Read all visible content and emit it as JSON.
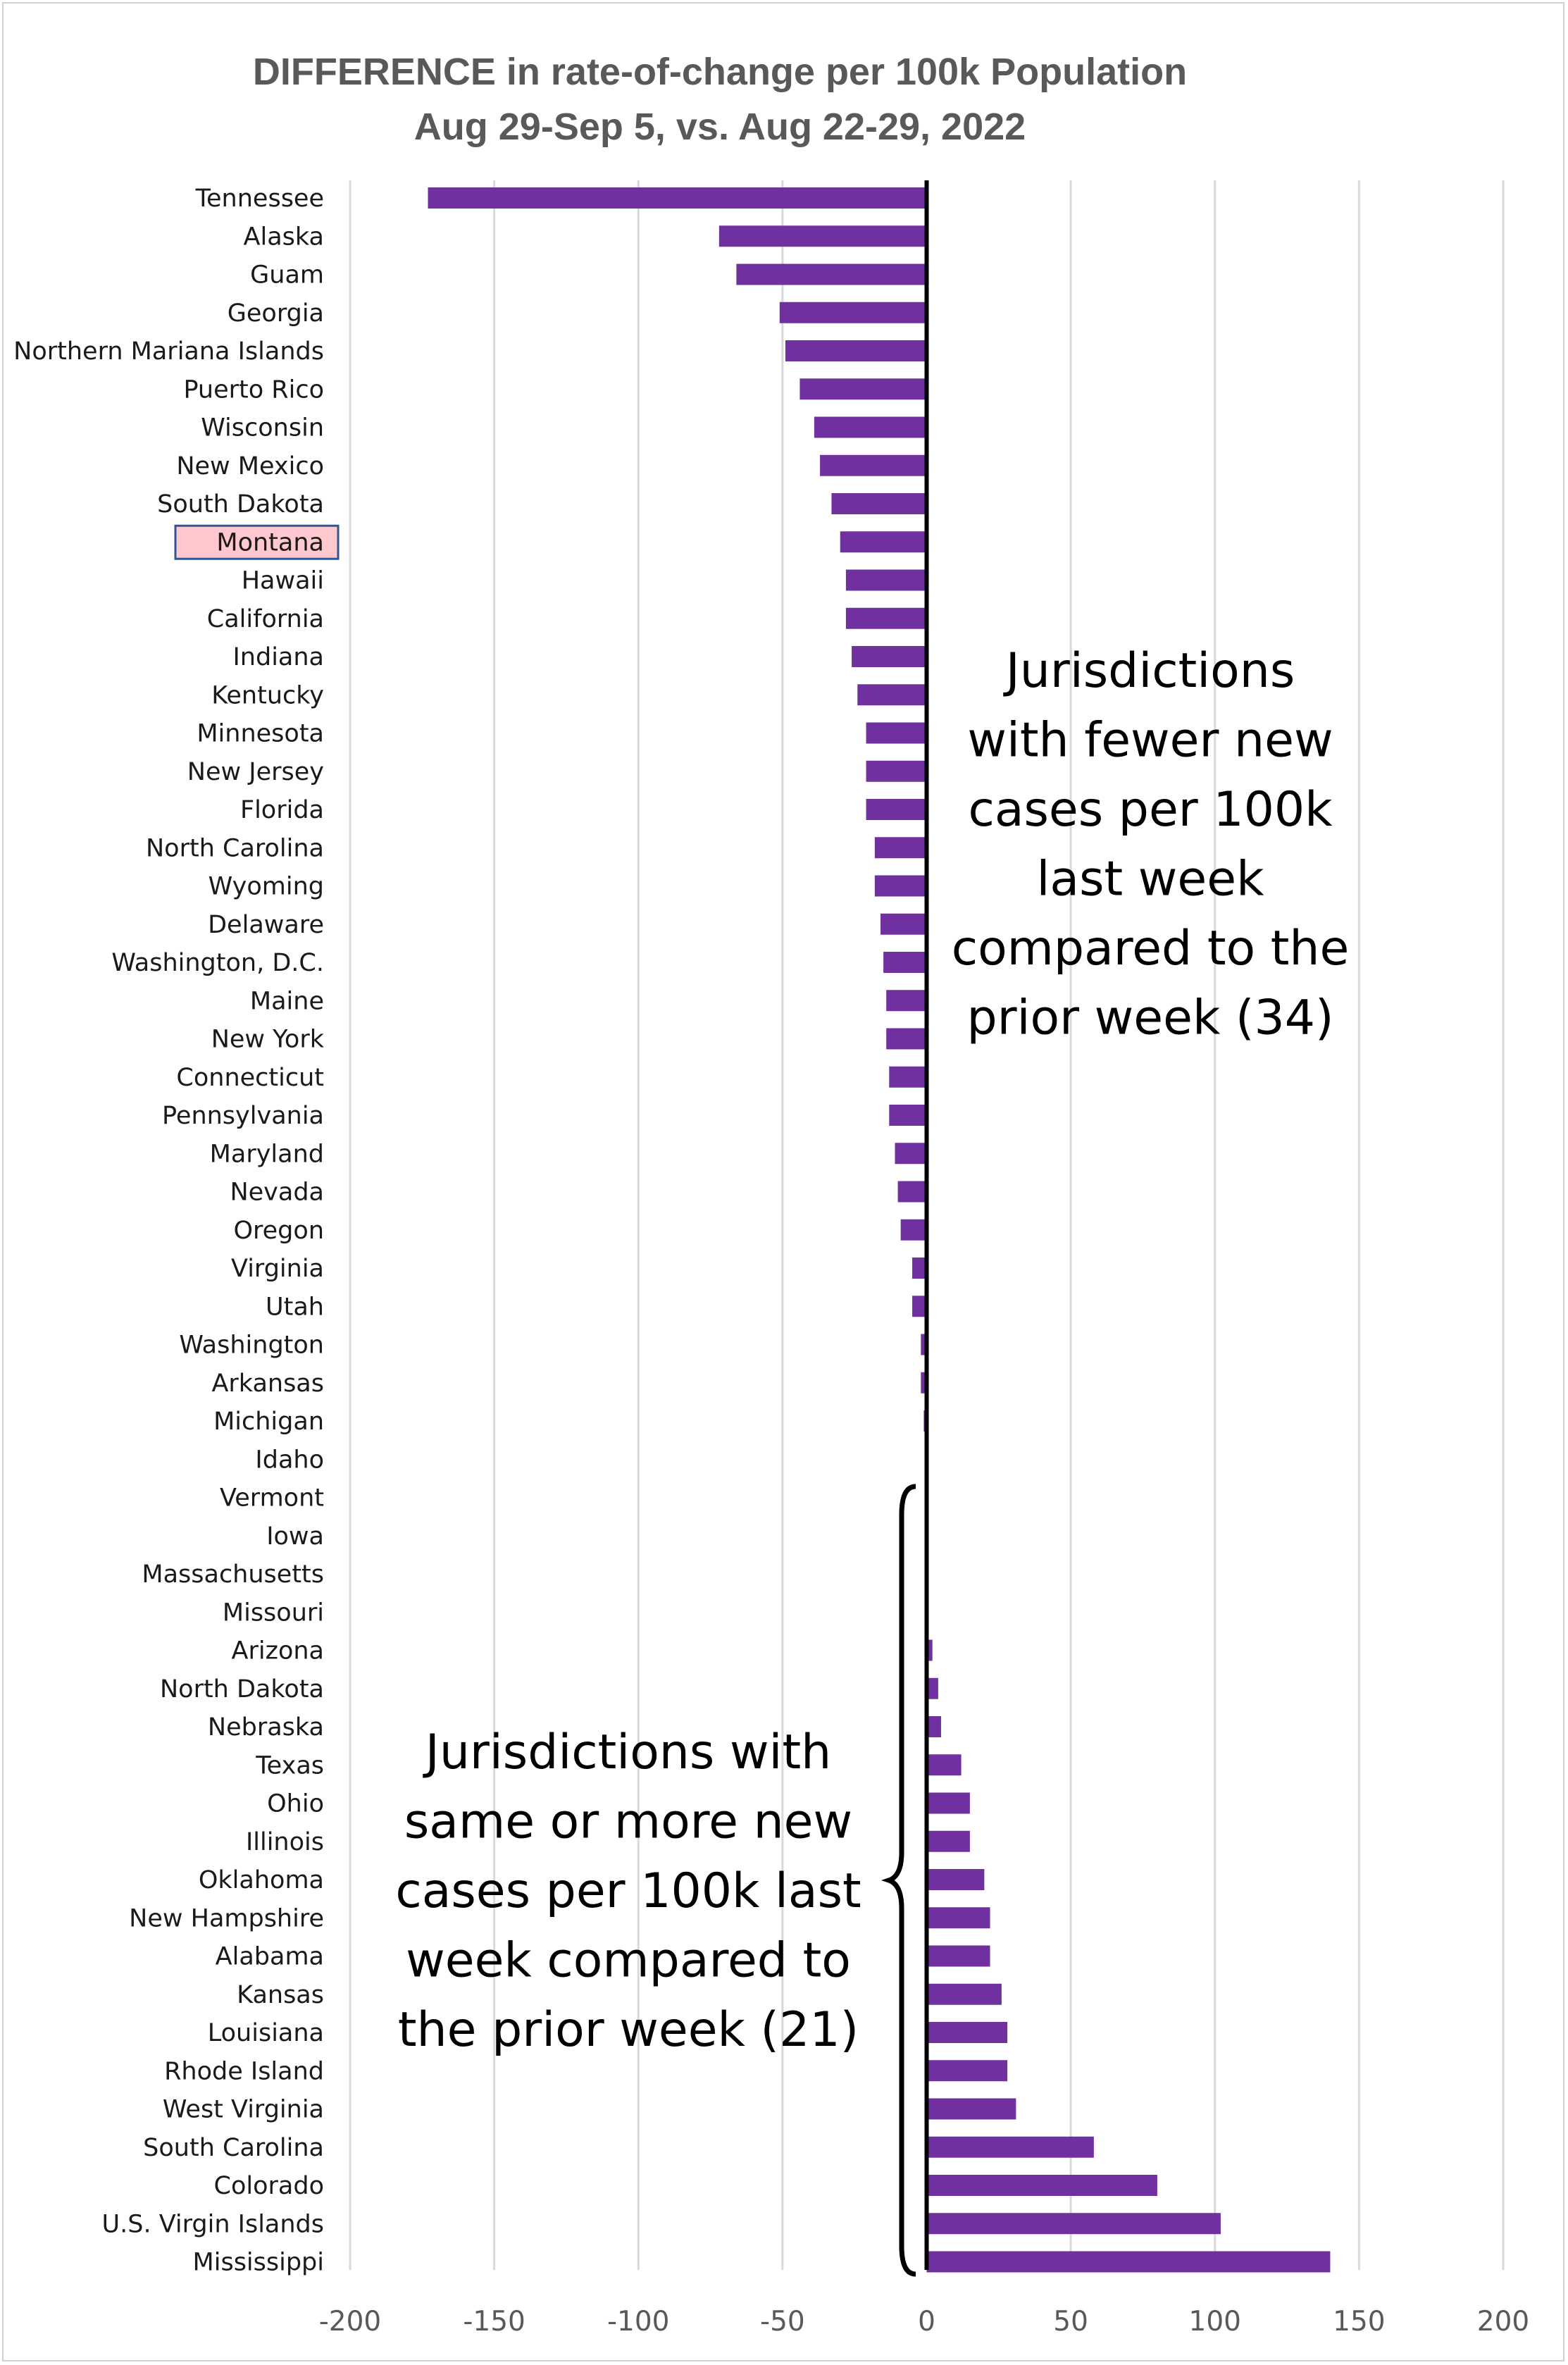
{
  "chart_data": {
    "type": "bar",
    "orientation": "horizontal",
    "title": "DIFFERENCE in rate-of-change per 100k Population",
    "subtitle": "Aug 29-Sep 5, vs. Aug 22-29, 2022",
    "xlabel": "",
    "ylabel": "",
    "xlim": [
      -200,
      200
    ],
    "xticks": [
      -200,
      -150,
      -100,
      -50,
      0,
      50,
      100,
      150,
      200
    ],
    "grid": true,
    "legend": "none",
    "bar_color": "#7030a0",
    "highlight_color": "#ffc7ce",
    "highlight_border": "#2f5597",
    "highlighted_category": "Montana",
    "categories": [
      "Tennessee",
      "Alaska",
      "Guam",
      "Georgia",
      "Northern Mariana Islands",
      "Puerto Rico",
      "Wisconsin",
      "New Mexico",
      "South Dakota",
      "Montana",
      "Hawaii",
      "California",
      "Indiana",
      "Kentucky",
      "Minnesota",
      "New Jersey",
      "Florida",
      "North Carolina",
      "Wyoming",
      "Delaware",
      "Washington, D.C.",
      "Maine",
      "New York",
      "Connecticut",
      "Pennsylvania",
      "Maryland",
      "Nevada",
      "Oregon",
      "Virginia",
      "Utah",
      "Washington",
      "Arkansas",
      "Michigan",
      "Idaho",
      "Vermont",
      "Iowa",
      "Massachusetts",
      "Missouri",
      "Arizona",
      "North Dakota",
      "Nebraska",
      "Texas",
      "Ohio",
      "Illinois",
      "Oklahoma",
      "New Hampshire",
      "Alabama",
      "Kansas",
      "Louisiana",
      "Rhode Island",
      "West Virginia",
      "South Carolina",
      "Colorado",
      "U.S. Virgin Islands",
      "Mississippi"
    ],
    "values": [
      -173,
      -72,
      -66,
      -51,
      -49,
      -44,
      -39,
      -37,
      -33,
      -30,
      -28,
      -28,
      -26,
      -24,
      -21,
      -21,
      -21,
      -18,
      -18,
      -16,
      -15,
      -14,
      -14,
      -13,
      -13,
      -11,
      -10,
      -9,
      -5,
      -5,
      -2,
      -2,
      -1,
      -0.5,
      0,
      0,
      0,
      0,
      2,
      4,
      5,
      12,
      15,
      15,
      20,
      22,
      22,
      26,
      28,
      28,
      31,
      58,
      80,
      102,
      140
    ],
    "annotations": [
      {
        "text": [
          "Jurisdictions",
          "with fewer new",
          "cases per 100k",
          "last week",
          "compared to the",
          "prior week (34)"
        ]
      },
      {
        "text": [
          "Jurisdictions with",
          "same or more new",
          "cases per 100k last",
          "week compared to",
          "the prior week (21)"
        ]
      }
    ]
  }
}
